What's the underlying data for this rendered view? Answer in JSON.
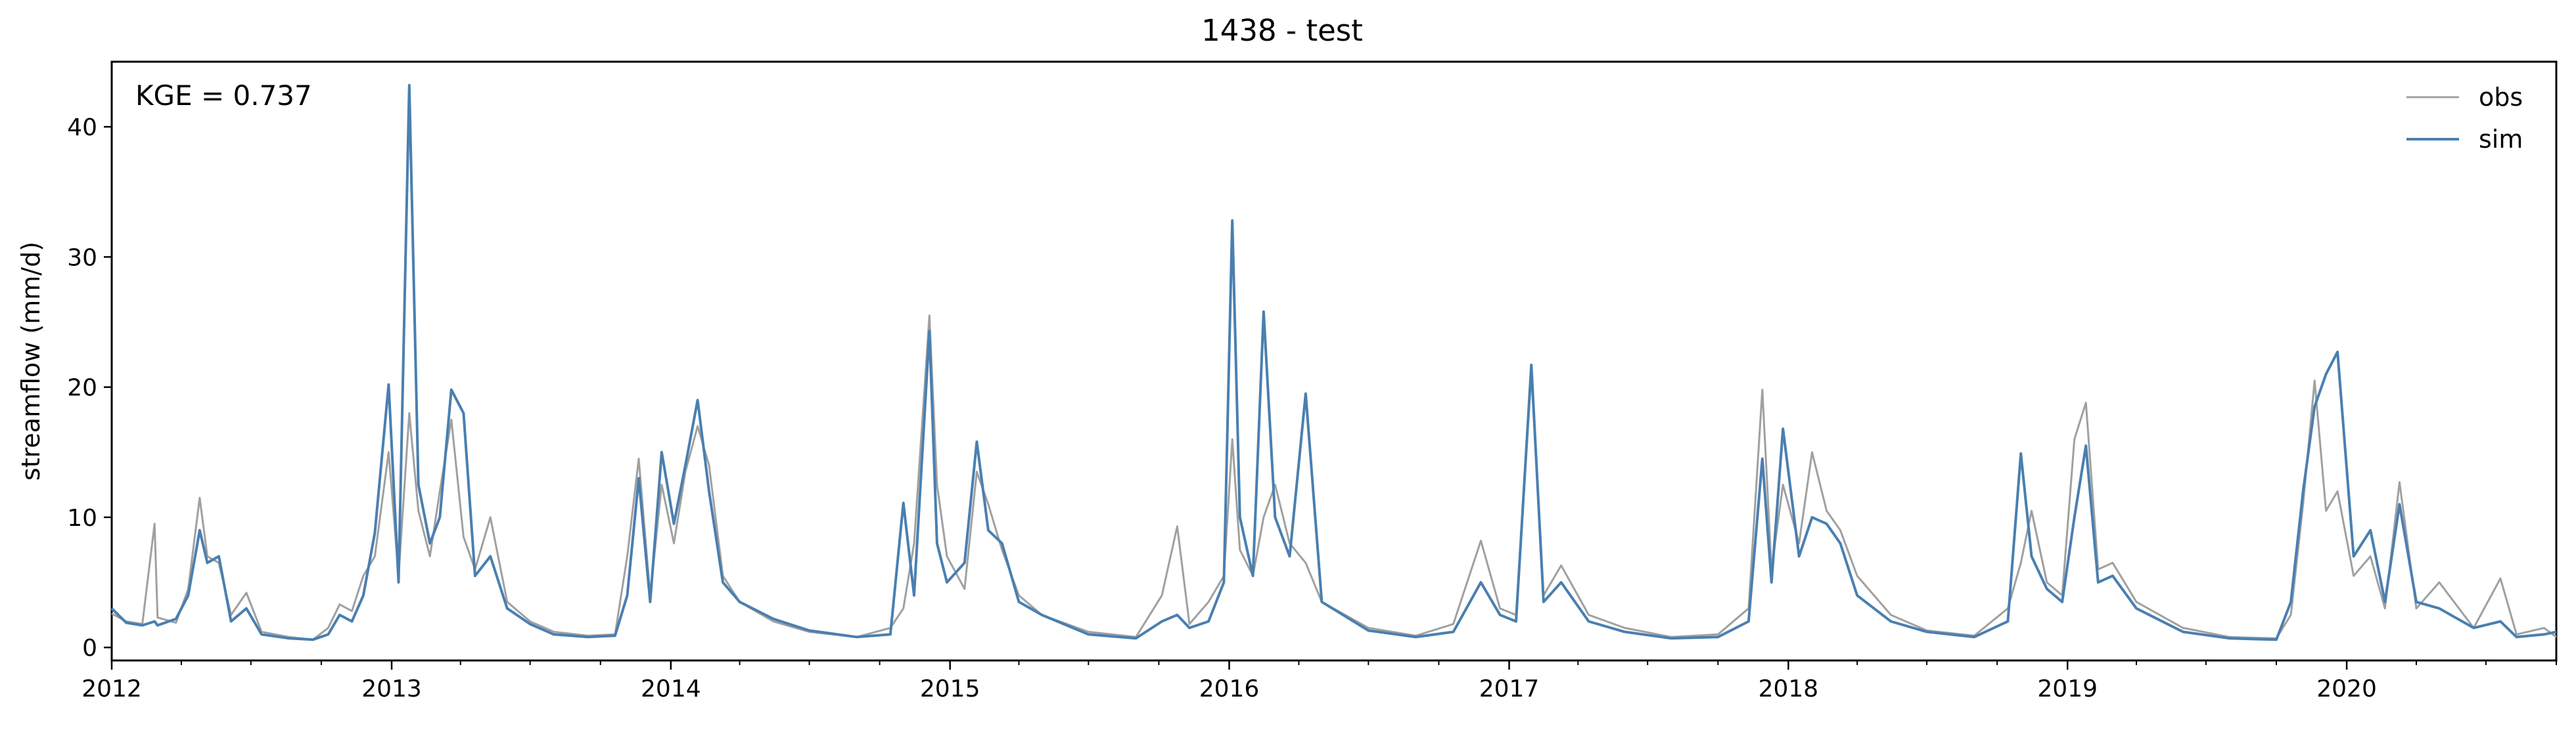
{
  "chart_data": {
    "type": "line",
    "title": "1438 - test",
    "xlabel": "",
    "ylabel": "streamflow (mm/d)",
    "annotation": "KGE = 0.737",
    "xlim": [
      "2012-01-01",
      "2020-10-01"
    ],
    "ylim": [
      -1,
      45
    ],
    "xticks": [
      "2012",
      "2013",
      "2014",
      "2015",
      "2016",
      "2017",
      "2018",
      "2019",
      "2020"
    ],
    "yticks": [
      0,
      10,
      20,
      30,
      40
    ],
    "grid": false,
    "legend_position": "top-right",
    "series": [
      {
        "name": "obs",
        "color": "#a0a0a0",
        "points": [
          [
            "2012-01-01",
            2.6
          ],
          [
            "2012-01-20",
            2.0
          ],
          [
            "2012-02-10",
            1.8
          ],
          [
            "2012-02-26",
            9.5
          ],
          [
            "2012-03-01",
            2.3
          ],
          [
            "2012-03-25",
            1.9
          ],
          [
            "2012-04-10",
            4.5
          ],
          [
            "2012-04-25",
            11.5
          ],
          [
            "2012-05-05",
            7.0
          ],
          [
            "2012-05-20",
            6.5
          ],
          [
            "2012-06-05",
            2.5
          ],
          [
            "2012-06-25",
            4.2
          ],
          [
            "2012-07-15",
            1.2
          ],
          [
            "2012-08-20",
            0.8
          ],
          [
            "2012-09-20",
            0.6
          ],
          [
            "2012-10-10",
            1.5
          ],
          [
            "2012-10-25",
            3.3
          ],
          [
            "2012-11-10",
            2.8
          ],
          [
            "2012-11-25",
            5.5
          ],
          [
            "2012-12-10",
            7.0
          ],
          [
            "2012-12-28",
            15.0
          ],
          [
            "2013-01-10",
            5.5
          ],
          [
            "2013-01-24",
            18.0
          ],
          [
            "2013-02-05",
            10.5
          ],
          [
            "2013-02-20",
            7.0
          ],
          [
            "2013-03-05",
            12.0
          ],
          [
            "2013-03-20",
            17.5
          ],
          [
            "2013-04-05",
            8.5
          ],
          [
            "2013-04-20",
            6.0
          ],
          [
            "2013-05-10",
            10.0
          ],
          [
            "2013-06-01",
            3.5
          ],
          [
            "2013-07-01",
            2.0
          ],
          [
            "2013-08-01",
            1.2
          ],
          [
            "2013-09-15",
            0.9
          ],
          [
            "2013-10-20",
            1.0
          ],
          [
            "2013-11-05",
            7.0
          ],
          [
            "2013-11-20",
            14.5
          ],
          [
            "2013-12-05",
            4.0
          ],
          [
            "2013-12-20",
            12.5
          ],
          [
            "2014-01-05",
            8.0
          ],
          [
            "2014-01-20",
            13.5
          ],
          [
            "2014-02-05",
            17.0
          ],
          [
            "2014-02-20",
            14.0
          ],
          [
            "2014-03-10",
            5.5
          ],
          [
            "2014-04-01",
            3.5
          ],
          [
            "2014-05-15",
            2.0
          ],
          [
            "2014-07-01",
            1.2
          ],
          [
            "2014-09-01",
            0.8
          ],
          [
            "2014-10-15",
            1.5
          ],
          [
            "2014-11-01",
            3.0
          ],
          [
            "2014-11-15",
            8.0
          ],
          [
            "2014-12-05",
            25.5
          ],
          [
            "2014-12-15",
            12.5
          ],
          [
            "2014-12-28",
            7.0
          ],
          [
            "2015-01-20",
            4.5
          ],
          [
            "2015-02-05",
            13.5
          ],
          [
            "2015-02-20",
            11.0
          ],
          [
            "2015-03-10",
            7.5
          ],
          [
            "2015-04-01",
            4.0
          ],
          [
            "2015-05-01",
            2.5
          ],
          [
            "2015-07-01",
            1.2
          ],
          [
            "2015-09-01",
            0.8
          ],
          [
            "2015-10-05",
            4.0
          ],
          [
            "2015-10-25",
            9.3
          ],
          [
            "2015-11-10",
            1.8
          ],
          [
            "2015-12-05",
            3.5
          ],
          [
            "2015-12-25",
            5.5
          ],
          [
            "2016-01-05",
            16.0
          ],
          [
            "2016-01-15",
            7.5
          ],
          [
            "2016-02-01",
            5.5
          ],
          [
            "2016-02-15",
            10.0
          ],
          [
            "2016-03-01",
            12.5
          ],
          [
            "2016-03-20",
            8.0
          ],
          [
            "2016-04-10",
            6.5
          ],
          [
            "2016-05-01",
            3.5
          ],
          [
            "2016-07-01",
            1.5
          ],
          [
            "2016-09-01",
            0.9
          ],
          [
            "2016-10-20",
            1.8
          ],
          [
            "2016-11-25",
            8.2
          ],
          [
            "2016-12-20",
            3.0
          ],
          [
            "2017-01-10",
            2.5
          ],
          [
            "2017-01-30",
            21.0
          ],
          [
            "2017-02-15",
            4.0
          ],
          [
            "2017-03-10",
            6.3
          ],
          [
            "2017-04-15",
            2.5
          ],
          [
            "2017-06-01",
            1.5
          ],
          [
            "2017-08-01",
            0.8
          ],
          [
            "2017-10-01",
            1.0
          ],
          [
            "2017-11-10",
            3.0
          ],
          [
            "2017-11-28",
            19.8
          ],
          [
            "2017-12-10",
            6.0
          ],
          [
            "2017-12-25",
            12.5
          ],
          [
            "2018-01-15",
            8.0
          ],
          [
            "2018-02-01",
            15.0
          ],
          [
            "2018-02-20",
            10.5
          ],
          [
            "2018-03-10",
            9.0
          ],
          [
            "2018-04-01",
            5.5
          ],
          [
            "2018-05-15",
            2.5
          ],
          [
            "2018-07-01",
            1.3
          ],
          [
            "2018-09-01",
            0.9
          ],
          [
            "2018-10-15",
            3.0
          ],
          [
            "2018-11-01",
            6.5
          ],
          [
            "2018-11-15",
            10.5
          ],
          [
            "2018-12-05",
            5.0
          ],
          [
            "2018-12-25",
            4.0
          ],
          [
            "2019-01-10",
            16.0
          ],
          [
            "2019-01-25",
            18.8
          ],
          [
            "2019-02-10",
            6.0
          ],
          [
            "2019-03-01",
            6.5
          ],
          [
            "2019-04-01",
            3.5
          ],
          [
            "2019-06-01",
            1.5
          ],
          [
            "2019-08-01",
            0.8
          ],
          [
            "2019-10-01",
            0.7
          ],
          [
            "2019-10-20",
            2.5
          ],
          [
            "2019-11-05",
            11.0
          ],
          [
            "2019-11-20",
            20.5
          ],
          [
            "2019-12-05",
            10.5
          ],
          [
            "2019-12-20",
            12.0
          ],
          [
            "2020-01-10",
            5.5
          ],
          [
            "2020-02-01",
            7.0
          ],
          [
            "2020-02-20",
            3.0
          ],
          [
            "2020-03-10",
            12.7
          ],
          [
            "2020-04-01",
            3.0
          ],
          [
            "2020-05-01",
            5.0
          ],
          [
            "2020-06-15",
            1.5
          ],
          [
            "2020-07-20",
            5.3
          ],
          [
            "2020-08-10",
            1.0
          ],
          [
            "2020-09-15",
            1.5
          ],
          [
            "2020-10-01",
            0.8
          ]
        ]
      },
      {
        "name": "sim",
        "color": "#4a7fb0",
        "points": [
          [
            "2012-01-01",
            3.0
          ],
          [
            "2012-01-20",
            1.9
          ],
          [
            "2012-02-10",
            1.7
          ],
          [
            "2012-02-26",
            2.0
          ],
          [
            "2012-03-01",
            1.7
          ],
          [
            "2012-03-25",
            2.2
          ],
          [
            "2012-04-10",
            4.0
          ],
          [
            "2012-04-25",
            9.0
          ],
          [
            "2012-05-05",
            6.5
          ],
          [
            "2012-05-20",
            7.0
          ],
          [
            "2012-06-05",
            2.0
          ],
          [
            "2012-06-25",
            3.0
          ],
          [
            "2012-07-15",
            1.0
          ],
          [
            "2012-08-20",
            0.7
          ],
          [
            "2012-09-20",
            0.6
          ],
          [
            "2012-10-10",
            1.0
          ],
          [
            "2012-10-25",
            2.5
          ],
          [
            "2012-11-10",
            2.0
          ],
          [
            "2012-11-25",
            4.0
          ],
          [
            "2012-12-10",
            8.8
          ],
          [
            "2012-12-28",
            20.2
          ],
          [
            "2013-01-10",
            5.0
          ],
          [
            "2013-01-24",
            43.2
          ],
          [
            "2013-02-05",
            12.5
          ],
          [
            "2013-02-20",
            8.0
          ],
          [
            "2013-03-05",
            10.0
          ],
          [
            "2013-03-20",
            19.8
          ],
          [
            "2013-04-05",
            18.0
          ],
          [
            "2013-04-20",
            5.5
          ],
          [
            "2013-05-10",
            7.0
          ],
          [
            "2013-06-01",
            3.0
          ],
          [
            "2013-07-01",
            1.8
          ],
          [
            "2013-08-01",
            1.0
          ],
          [
            "2013-09-15",
            0.8
          ],
          [
            "2013-10-20",
            0.9
          ],
          [
            "2013-11-05",
            4.0
          ],
          [
            "2013-11-20",
            13.0
          ],
          [
            "2013-12-05",
            3.5
          ],
          [
            "2013-12-20",
            15.0
          ],
          [
            "2014-01-05",
            9.5
          ],
          [
            "2014-01-20",
            14.0
          ],
          [
            "2014-02-05",
            19.0
          ],
          [
            "2014-02-20",
            12.0
          ],
          [
            "2014-03-10",
            5.0
          ],
          [
            "2014-04-01",
            3.5
          ],
          [
            "2014-05-15",
            2.2
          ],
          [
            "2014-07-01",
            1.3
          ],
          [
            "2014-09-01",
            0.8
          ],
          [
            "2014-10-15",
            1.0
          ],
          [
            "2014-11-01",
            11.1
          ],
          [
            "2014-11-15",
            4.0
          ],
          [
            "2014-12-05",
            24.3
          ],
          [
            "2014-12-15",
            8.0
          ],
          [
            "2014-12-28",
            5.0
          ],
          [
            "2015-01-20",
            6.5
          ],
          [
            "2015-02-05",
            15.8
          ],
          [
            "2015-02-20",
            9.0
          ],
          [
            "2015-03-10",
            8.0
          ],
          [
            "2015-04-01",
            3.5
          ],
          [
            "2015-05-01",
            2.5
          ],
          [
            "2015-07-01",
            1.0
          ],
          [
            "2015-09-01",
            0.7
          ],
          [
            "2015-10-05",
            2.0
          ],
          [
            "2015-10-25",
            2.5
          ],
          [
            "2015-11-10",
            1.5
          ],
          [
            "2015-12-05",
            2.0
          ],
          [
            "2015-12-25",
            5.0
          ],
          [
            "2016-01-05",
            32.8
          ],
          [
            "2016-01-15",
            10.0
          ],
          [
            "2016-02-01",
            5.5
          ],
          [
            "2016-02-15",
            25.8
          ],
          [
            "2016-03-01",
            10.0
          ],
          [
            "2016-03-20",
            7.0
          ],
          [
            "2016-04-10",
            19.5
          ],
          [
            "2016-05-01",
            3.5
          ],
          [
            "2016-07-01",
            1.3
          ],
          [
            "2016-09-01",
            0.8
          ],
          [
            "2016-10-20",
            1.2
          ],
          [
            "2016-11-25",
            5.0
          ],
          [
            "2016-12-20",
            2.5
          ],
          [
            "2017-01-10",
            2.0
          ],
          [
            "2017-01-30",
            21.7
          ],
          [
            "2017-02-15",
            3.5
          ],
          [
            "2017-03-10",
            5.0
          ],
          [
            "2017-04-15",
            2.0
          ],
          [
            "2017-06-01",
            1.2
          ],
          [
            "2017-08-01",
            0.7
          ],
          [
            "2017-10-01",
            0.8
          ],
          [
            "2017-11-10",
            2.0
          ],
          [
            "2017-11-28",
            14.5
          ],
          [
            "2017-12-10",
            5.0
          ],
          [
            "2017-12-25",
            16.8
          ],
          [
            "2018-01-15",
            7.0
          ],
          [
            "2018-02-01",
            10.0
          ],
          [
            "2018-02-20",
            9.5
          ],
          [
            "2018-03-10",
            8.0
          ],
          [
            "2018-04-01",
            4.0
          ],
          [
            "2018-05-15",
            2.0
          ],
          [
            "2018-07-01",
            1.2
          ],
          [
            "2018-09-01",
            0.8
          ],
          [
            "2018-10-15",
            2.0
          ],
          [
            "2018-11-01",
            14.9
          ],
          [
            "2018-11-15",
            7.0
          ],
          [
            "2018-12-05",
            4.5
          ],
          [
            "2018-12-25",
            3.5
          ],
          [
            "2019-01-10",
            10.0
          ],
          [
            "2019-01-25",
            15.5
          ],
          [
            "2019-02-10",
            5.0
          ],
          [
            "2019-03-01",
            5.5
          ],
          [
            "2019-04-01",
            3.0
          ],
          [
            "2019-06-01",
            1.2
          ],
          [
            "2019-08-01",
            0.7
          ],
          [
            "2019-10-01",
            0.6
          ],
          [
            "2019-10-20",
            3.5
          ],
          [
            "2019-11-05",
            12.0
          ],
          [
            "2019-11-20",
            18.5
          ],
          [
            "2019-12-05",
            21.0
          ],
          [
            "2019-12-20",
            22.7
          ],
          [
            "2020-01-10",
            7.0
          ],
          [
            "2020-02-01",
            9.0
          ],
          [
            "2020-02-20",
            3.5
          ],
          [
            "2020-03-10",
            11.0
          ],
          [
            "2020-04-01",
            3.5
          ],
          [
            "2020-05-01",
            3.0
          ],
          [
            "2020-06-15",
            1.5
          ],
          [
            "2020-07-20",
            2.0
          ],
          [
            "2020-08-10",
            0.8
          ],
          [
            "2020-09-15",
            1.0
          ],
          [
            "2020-10-01",
            1.2
          ]
        ]
      }
    ]
  }
}
